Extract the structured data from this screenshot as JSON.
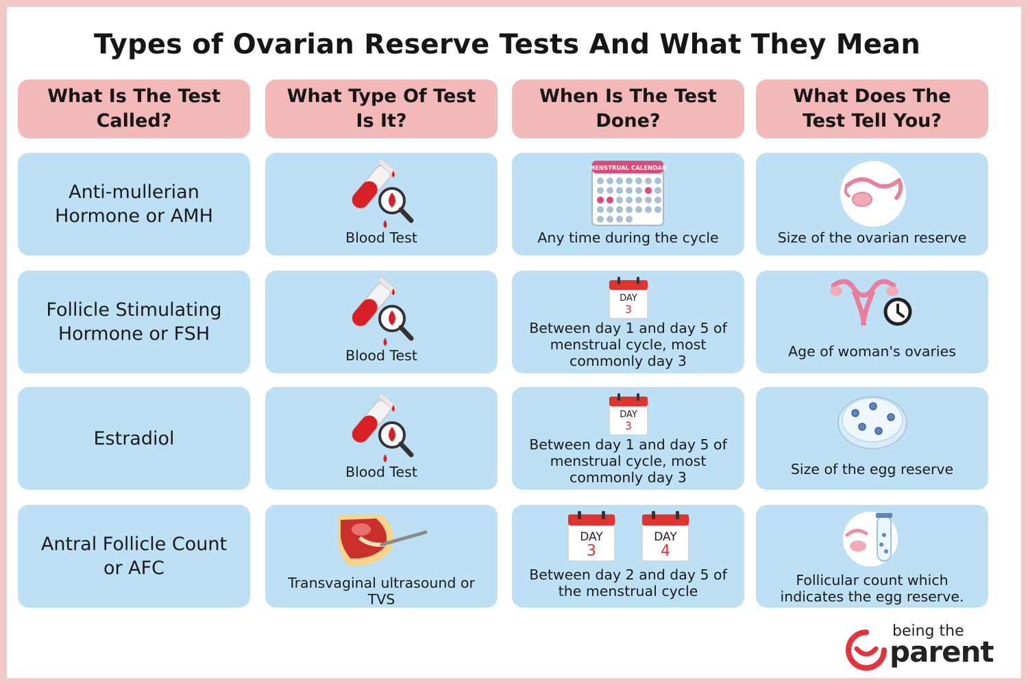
{
  "title": "Types of Ovarian Reserve Tests And What They Mean",
  "headers": [
    "What Is The Test Called?",
    "What Type Of Test Is It?",
    "When Is The Test Done?",
    "What Does The Test Tell You?"
  ],
  "rows": [
    {
      "name": "Anti-mullerian Hormone or AMH",
      "type": "Blood Test",
      "when": "Any time during the cycle",
      "calendar_label": "MENSTRUAL CALENDAR",
      "tells": "Size of the ovarian reserve"
    },
    {
      "name": "Follicle Stimulating Hormone or FSH",
      "type": "Blood Test",
      "when": "Between day 1 and day 5 of menstrual cycle, most commonly day 3",
      "day_label": "DAY",
      "day_number": "3",
      "tells": "Age of woman's ovaries"
    },
    {
      "name": "Estradiol",
      "type": "Blood Test",
      "when": "Between day 1 and day 5 of menstrual cycle, most commonly day 3",
      "day_label": "DAY",
      "day_number": "3",
      "tells": "Size of the egg reserve"
    },
    {
      "name": "Antral Follicle Count or AFC",
      "type": "Transvaginal ultrasound or TVS",
      "when": "Between day 2 and day 5 of the menstrual cycle",
      "day_label": "DAY",
      "day_number": "3",
      "day_label_2": "DAY",
      "day_number_2": "4",
      "tells": "Follicular count which indicates the egg reserve."
    }
  ],
  "logo": {
    "line1": "being the",
    "line2": "parent"
  },
  "colors": {
    "header_bg": "#f3b9b9",
    "cell_bg": "#bee0f5",
    "border": "#f3c7c7",
    "accent_red": "#e02b2b"
  }
}
